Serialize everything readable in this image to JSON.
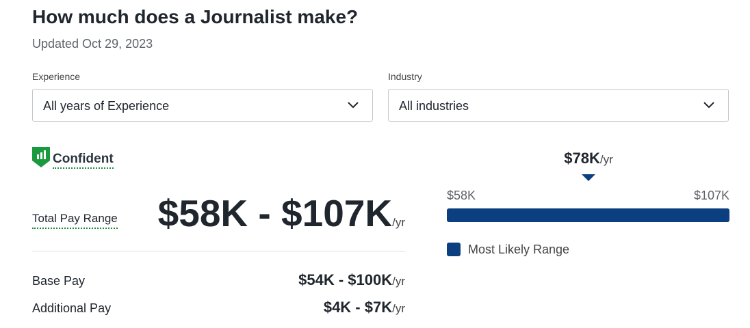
{
  "header": {
    "title": "How much does a Journalist make?",
    "updated": "Updated Oct 29, 2023"
  },
  "filters": [
    {
      "label": "Experience",
      "value": "All years of Experience"
    },
    {
      "label": "Industry",
      "value": "All industries"
    }
  ],
  "confidence": "Confident",
  "unit": "/yr",
  "total_pay": {
    "label": "Total Pay Range",
    "value": "$58K - $107K"
  },
  "breakdown": [
    {
      "label": "Base Pay",
      "value": "$54K - $100K"
    },
    {
      "label": "Additional Pay",
      "value": "$4K - $7K"
    }
  ],
  "range_chart": {
    "median": "$78K",
    "low": "$58K",
    "high": "$107K",
    "legend": "Most Likely Range"
  }
}
